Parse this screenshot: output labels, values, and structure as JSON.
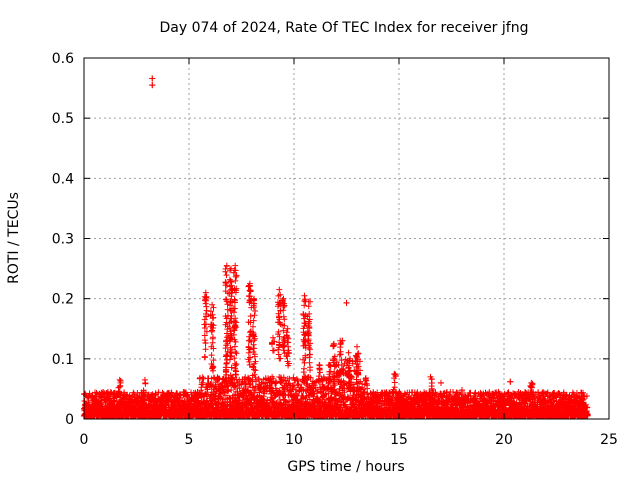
{
  "chart_data": {
    "type": "scatter",
    "title": "Day 074 of 2024, Rate Of TEC Index for receiver jfng",
    "xlabel": "GPS time / hours",
    "ylabel": "ROTI / TECUs",
    "xlim": [
      0,
      25
    ],
    "ylim": [
      0,
      0.6
    ],
    "xticks": [
      0,
      5,
      10,
      15,
      20,
      25
    ],
    "xtick_labels": [
      "0",
      "5",
      "10",
      "15",
      "20",
      "25"
    ],
    "yticks": [
      0,
      0.1,
      0.2,
      0.3,
      0.4,
      0.5,
      0.6
    ],
    "ytick_labels": [
      "0",
      "0.1",
      "0.2",
      "0.3",
      "0.4",
      "0.5",
      "0.6"
    ],
    "grid": true,
    "marker": "+",
    "series_color": "#ff0000",
    "baseline": {
      "x_start": 0,
      "x_end": 24,
      "typical_range": [
        0.005,
        0.045
      ],
      "elevated_segments": [
        {
          "x": [
            5.5,
            13.5
          ],
          "max": 0.07
        },
        {
          "x": [
            12,
            13.2
          ],
          "max": 0.1
        }
      ]
    },
    "spike_clusters": [
      {
        "x": 1.7,
        "y_range": [
          0.03,
          0.065
        ]
      },
      {
        "x": 2.9,
        "y_range": [
          0.03,
          0.065
        ]
      },
      {
        "x": 5.8,
        "y_range": [
          0.1,
          0.21
        ]
      },
      {
        "x": 6.1,
        "y_range": [
          0.08,
          0.19
        ]
      },
      {
        "x": 6.8,
        "y_range": [
          0.05,
          0.255
        ]
      },
      {
        "x": 7.0,
        "y_range": [
          0.06,
          0.25
        ]
      },
      {
        "x": 7.2,
        "y_range": [
          0.07,
          0.255
        ]
      },
      {
        "x": 7.9,
        "y_range": [
          0.08,
          0.225
        ]
      },
      {
        "x": 8.1,
        "y_range": [
          0.07,
          0.2
        ]
      },
      {
        "x": 9.0,
        "y_range": [
          0.11,
          0.135
        ]
      },
      {
        "x": 9.3,
        "y_range": [
          0.1,
          0.215
        ]
      },
      {
        "x": 9.5,
        "y_range": [
          0.1,
          0.2
        ]
      },
      {
        "x": 9.7,
        "y_range": [
          0.08,
          0.15
        ]
      },
      {
        "x": 10.5,
        "y_range": [
          0.07,
          0.205
        ]
      },
      {
        "x": 10.7,
        "y_range": [
          0.08,
          0.195
        ]
      },
      {
        "x": 11.2,
        "y_range": [
          0.06,
          0.09
        ]
      },
      {
        "x": 11.7,
        "y_range": [
          0.05,
          0.09
        ]
      },
      {
        "x": 11.9,
        "y_range": [
          0.06,
          0.125
        ]
      },
      {
        "x": 12.2,
        "y_range": [
          0.06,
          0.13
        ]
      },
      {
        "x": 12.6,
        "y_range": [
          0.05,
          0.11
        ]
      },
      {
        "x": 13.0,
        "y_range": [
          0.06,
          0.12
        ]
      },
      {
        "x": 14.8,
        "y_range": [
          0.04,
          0.075
        ]
      },
      {
        "x": 16.5,
        "y_range": [
          0.04,
          0.07
        ]
      },
      {
        "x": 21.3,
        "y_range": [
          0.05,
          0.06
        ]
      }
    ],
    "outliers": [
      {
        "x": 3.25,
        "y": 0.566
      },
      {
        "x": 3.25,
        "y": 0.555
      },
      {
        "x": 12.5,
        "y": 0.193
      },
      {
        "x": 12.3,
        "y": 0.13
      },
      {
        "x": 20.3,
        "y": 0.062
      },
      {
        "x": 18.0,
        "y": 0.048
      },
      {
        "x": 17.0,
        "y": 0.06
      }
    ]
  }
}
